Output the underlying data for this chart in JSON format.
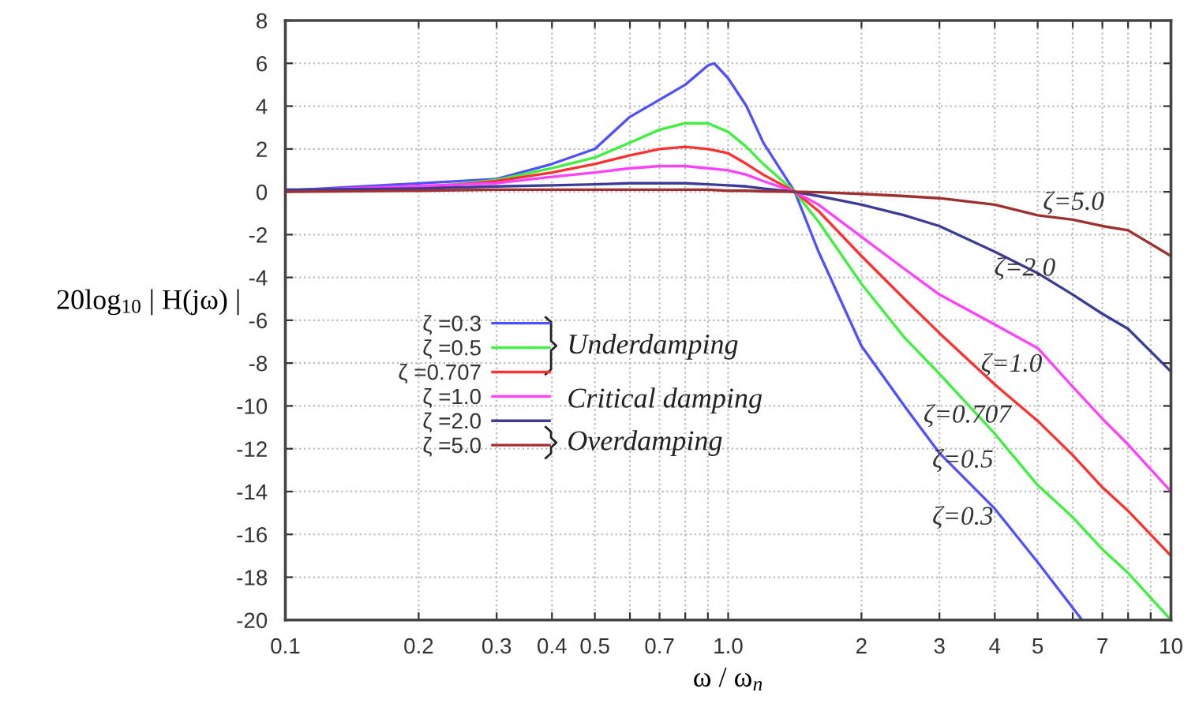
{
  "chart_data": {
    "type": "line",
    "xlabel": "ω / ω$_{n}$",
    "ylabel": "20log$_{10}$ | H(jω) |",
    "log": "x",
    "xlim": [
      0.1,
      10
    ],
    "ylim": [
      -20,
      8
    ],
    "xticks": [
      {
        "value": 0.1,
        "label": "0.1"
      },
      0.2,
      0.3,
      0.4,
      0.5,
      {
        "value": 0.6,
        "label": null
      },
      0.7,
      {
        "value": 0.8,
        "label": null
      },
      {
        "value": 0.9,
        "label": null
      },
      {
        "value": 1,
        "label": "1.0"
      },
      2,
      3,
      4,
      5,
      {
        "value": 6,
        "label": null
      },
      7,
      {
        "value": 8,
        "label": null
      },
      {
        "value": 9,
        "label": null
      },
      10
    ],
    "yticks": [
      -20,
      -18,
      -16,
      -14,
      -12,
      -10,
      -8,
      -6,
      -4,
      -2,
      0,
      2,
      4,
      6,
      8
    ],
    "grid": true,
    "legend": "center",
    "x": [
      0.1,
      0.2,
      0.3,
      0.4,
      0.5,
      0.6,
      0.7,
      0.8,
      0.9,
      1.0,
      1.1,
      1.2,
      1.414,
      1.6,
      2,
      2.5,
      3,
      4,
      5,
      6,
      7,
      8,
      10
    ],
    "series": [
      {
        "name": "ζ =0.3",
        "color": "#5050ff",
        "x": [
          0.1,
          0.3,
          0.4,
          0.5,
          0.6,
          0.7,
          0.8,
          0.9,
          0.93,
          1.0,
          1.1,
          1.2,
          1.414,
          1.6,
          2,
          2.5,
          3,
          4,
          5,
          6.3
        ],
        "values": [
          0.05,
          0.6,
          1.3,
          2.0,
          3.5,
          4.3,
          5.0,
          5.9,
          6.0,
          5.3,
          4.0,
          2.3,
          0,
          -2.8,
          -7.2,
          -10,
          -12.2,
          -14.8,
          -17.3,
          -20
        ]
      },
      {
        "name": "ζ =0.5",
        "color": "#40f040",
        "values": [
          0.05,
          0.2,
          0.55,
          1.1,
          1.6,
          2.3,
          2.9,
          3.2,
          3.2,
          2.8,
          2.1,
          1.3,
          0,
          -1.4,
          -4.3,
          -6.8,
          -8.5,
          -11.3,
          -13.7,
          -15.2,
          -16.7,
          -17.8,
          -20
        ]
      },
      {
        "name": "ζ =0.707",
        "color": "#ff3030",
        "values": [
          0.05,
          0.15,
          0.5,
          0.9,
          1.3,
          1.7,
          2.0,
          2.1,
          2.0,
          1.8,
          1.3,
          0.8,
          0,
          -0.9,
          -3,
          -5,
          -6.6,
          -9,
          -10.7,
          -12.3,
          -13.8,
          -14.9,
          -17
        ]
      },
      {
        "name": "ζ =1.0",
        "color": "#ff40ff",
        "x": [
          0.1,
          0.3,
          0.4,
          0.5,
          0.6,
          0.7,
          0.8,
          0.9,
          1.0,
          1.1,
          1.2,
          1.414,
          1.6,
          2,
          2.5,
          3,
          4,
          5,
          6,
          7,
          8,
          10
        ],
        "values": [
          0.05,
          0.4,
          0.7,
          0.9,
          1.1,
          1.2,
          1.2,
          1.1,
          1.0,
          0.8,
          0.5,
          0,
          -0.6,
          -2.1,
          -3.6,
          -4.8,
          -6.2,
          -7.3,
          -9.1,
          -10.6,
          -11.8,
          -14
        ]
      },
      {
        "name": "ζ =2.0",
        "color": "#3c3c96",
        "values": [
          0.1,
          0.15,
          0.25,
          0.3,
          0.35,
          0.4,
          0.4,
          0.4,
          0.35,
          0.3,
          0.25,
          0.15,
          0,
          -0.2,
          -0.6,
          -1.1,
          -1.6,
          -2.8,
          -3.8,
          -4.8,
          -5.7,
          -6.4,
          -8.4
        ]
      },
      {
        "name": "ζ =5.0",
        "color": "#a03030",
        "values": [
          0,
          0.05,
          0.1,
          0.1,
          0.1,
          0.1,
          0.1,
          0.1,
          0.1,
          0.05,
          0.05,
          0.02,
          0,
          -0.02,
          -0.1,
          -0.2,
          -0.3,
          -0.6,
          -1.1,
          -1.3,
          -1.6,
          -1.8,
          -3.0
        ]
      }
    ],
    "annotations": [
      "Underdamping",
      "Critical damping",
      "Overdamping",
      "ζ=5.0",
      "ζ=2.0",
      "ζ=1.0",
      "ζ=0.707",
      "ζ=0.5",
      "ζ=0.3"
    ]
  }
}
